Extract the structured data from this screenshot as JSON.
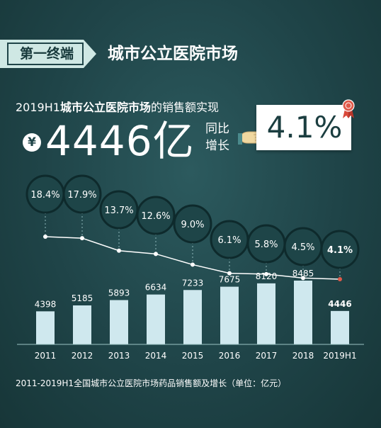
{
  "header": {
    "tag": "第一终端",
    "title": "城市公立医院市场"
  },
  "summary": {
    "prefix": "2019H1",
    "subject": "城市公立医院市场",
    "suffix": "的销售额实现",
    "currency_symbol": "¥",
    "amount": "4446亿",
    "yoy_label": "同比增长",
    "growth": "4.1%"
  },
  "footnote": "2011-2019H1全国城市公立医院市场药品销售额及增长（单位：亿元）",
  "colors": {
    "background": "#1f4448",
    "bar": "#cfe8ee",
    "line": "#ffffff",
    "bubble_fill": "#1e4548",
    "bubble_stroke": "#0e2a2c",
    "highlight_marker": "#e05a4a"
  },
  "chart_data": {
    "type": "bar",
    "categories": [
      "2011",
      "2012",
      "2013",
      "2014",
      "2015",
      "2016",
      "2017",
      "2018",
      "2019H1"
    ],
    "series": [
      {
        "values": [
          4398,
          5185,
          5893,
          6634,
          7233,
          7675,
          8120,
          8485,
          4446
        ]
      },
      {
        "type": "line",
        "values": [
          18.4,
          17.9,
          13.7,
          12.6,
          9.0,
          6.1,
          5.8,
          4.5,
          4.1
        ]
      }
    ],
    "bar_labels": [
      "4398",
      "5185",
      "5893",
      "6634",
      "7233",
      "7675",
      "8120",
      "8485",
      "4446"
    ],
    "growth_labels": [
      "18.4%",
      "17.9%",
      "13.7%",
      "12.6%",
      "9.0%",
      "6.1%",
      "5.8%",
      "4.5%",
      "4.1%"
    ],
    "highlight_index": 8,
    "ylim_bars": [
      0,
      9000
    ],
    "ylim_growth": [
      0,
      20
    ],
    "grid": false,
    "legend": "none"
  }
}
